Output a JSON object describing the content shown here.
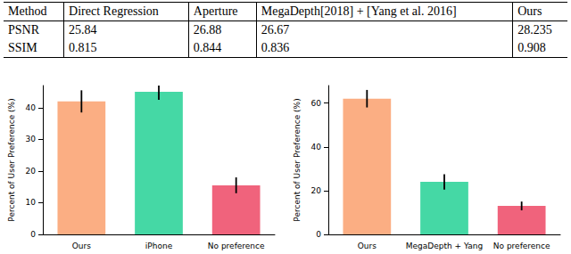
{
  "table": {
    "header": [
      "Method",
      "Direct Regression",
      "Aperture",
      "MegaDepth[2018] + [Yang et al. 2016]",
      "Ours"
    ],
    "rows": [
      [
        "PSNR",
        "25.84",
        "26.88",
        "26.67",
        "28.235"
      ],
      [
        "SSIM",
        "0.815",
        "0.844",
        "0.836",
        "0.908"
      ]
    ]
  },
  "chart_data": [
    {
      "type": "bar",
      "ylabel": "Percent of User Preference (%)",
      "categories": [
        "Ours",
        "iPhone",
        "No preference"
      ],
      "values": [
        42,
        45,
        15.5
      ],
      "errors": [
        3.5,
        2.5,
        2.5
      ],
      "colors": [
        "#fbae83",
        "#45d8a5",
        "#f0637c"
      ],
      "ylim": [
        0,
        47
      ],
      "yticks": [
        0,
        10,
        20,
        30,
        40
      ]
    },
    {
      "type": "bar",
      "ylabel": "Percent of User Preference (%)",
      "categories": [
        "Ours",
        "MegaDepth + Yang",
        "No preference"
      ],
      "values": [
        62,
        24,
        13
      ],
      "errors": [
        4,
        3.5,
        2
      ],
      "colors": [
        "#fbae83",
        "#45d8a5",
        "#f0637c"
      ],
      "ylim": [
        0,
        68
      ],
      "yticks": [
        0,
        20,
        40,
        60
      ]
    }
  ]
}
